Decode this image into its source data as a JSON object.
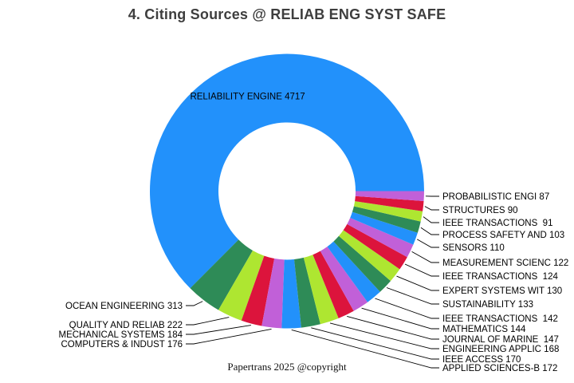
{
  "page": {
    "title": "4. Citing Sources @ RELIAB ENG SYST SAFE",
    "footer": "Papertrans 2025 @copyright"
  },
  "chart_data": {
    "type": "pie",
    "subtype": "donut",
    "title": "4. Citing Sources @ RELIAB ENG SYST SAFE",
    "total": 7545,
    "start_angle_deg": 0,
    "direction": "counterclockwise",
    "inner_radius_ratio": 0.5,
    "legend_position": "none",
    "palette": [
      "#2291fb",
      "#2e8b57",
      "#aee631",
      "#dc143c",
      "#c160d8"
    ],
    "segments": [
      {
        "label": "RELIABILITY ENGINE",
        "value": 4717,
        "color": "#2291fb",
        "label_placement": "inside"
      },
      {
        "label": "OCEAN ENGINEERING",
        "value": 313,
        "color": "#2e8b57",
        "label_placement": "left"
      },
      {
        "label": "QUALITY AND RELIAB",
        "value": 222,
        "color": "#aee631",
        "label_placement": "left"
      },
      {
        "label": "MECHANICAL SYSTEMS",
        "value": 184,
        "color": "#dc143c",
        "label_placement": "left"
      },
      {
        "label": "COMPUTERS & INDUST",
        "value": 176,
        "color": "#c160d8",
        "label_placement": "left"
      },
      {
        "label": "APPLIED SCIENCES-B",
        "value": 172,
        "color": "#2291fb",
        "label_placement": "right"
      },
      {
        "label": "IEEE ACCESS",
        "value": 170,
        "color": "#2e8b57",
        "label_placement": "right"
      },
      {
        "label": "ENGINEERING APPLIC",
        "value": 168,
        "color": "#aee631",
        "label_placement": "right"
      },
      {
        "label": "JOURNAL OF MARINE ",
        "value": 147,
        "color": "#dc143c",
        "label_placement": "right"
      },
      {
        "label": "MATHEMATICS",
        "value": 144,
        "color": "#c160d8",
        "label_placement": "right"
      },
      {
        "label": "IEEE TRANSACTIONS ",
        "value": 142,
        "color": "#2291fb",
        "label_placement": "right"
      },
      {
        "label": "SUSTAINABILITY",
        "value": 133,
        "color": "#2e8b57",
        "label_placement": "right"
      },
      {
        "label": "EXPERT SYSTEMS WIT",
        "value": 130,
        "color": "#aee631",
        "label_placement": "right"
      },
      {
        "label": "IEEE TRANSACTIONS ",
        "value": 124,
        "color": "#dc143c",
        "label_placement": "right"
      },
      {
        "label": "MEASUREMENT SCIENC",
        "value": 122,
        "color": "#c160d8",
        "label_placement": "right"
      },
      {
        "label": "SENSORS",
        "value": 110,
        "color": "#2291fb",
        "label_placement": "right"
      },
      {
        "label": "PROCESS SAFETY AND",
        "value": 103,
        "color": "#2e8b57",
        "label_placement": "right"
      },
      {
        "label": "IEEE TRANSACTIONS ",
        "value": 91,
        "color": "#aee631",
        "label_placement": "right"
      },
      {
        "label": "STRUCTURES",
        "value": 90,
        "color": "#dc143c",
        "label_placement": "right"
      },
      {
        "label": "PROBABILISTIC ENGI",
        "value": 87,
        "color": "#c160d8",
        "label_placement": "right"
      }
    ]
  }
}
